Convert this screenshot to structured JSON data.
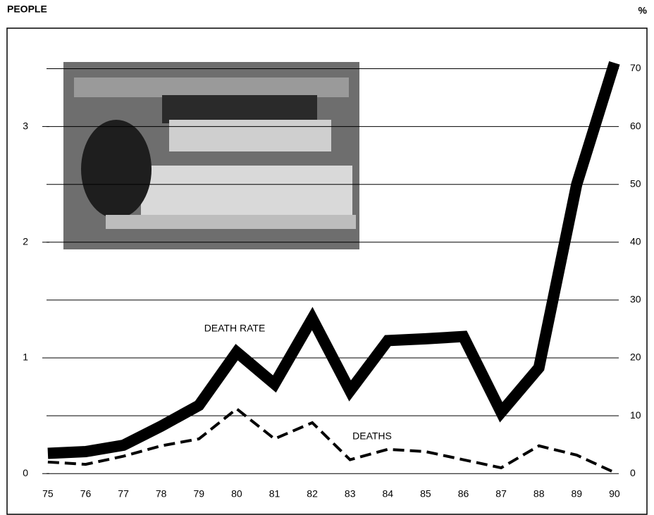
{
  "chart_data": {
    "type": "line",
    "y_label": "PEOPLE",
    "y2_label": "%",
    "x": [
      75,
      76,
      77,
      78,
      79,
      80,
      81,
      82,
      83,
      84,
      85,
      86,
      87,
      88,
      89,
      90
    ],
    "xlim": [
      73.92,
      90.86
    ],
    "ylim": [
      -0.23,
      3.85
    ],
    "yticks": [
      0,
      1,
      2,
      3
    ],
    "y2lim": [
      -4.6,
      77
    ],
    "y2ticks": [
      0,
      10,
      20,
      30,
      40,
      50,
      60,
      70
    ],
    "grid": true,
    "series": [
      {
        "name": "DEATH RATE",
        "color": "#000000",
        "axis": "y2",
        "linestyle": "solid",
        "values": [
          3.5,
          3.8,
          4.9,
          8.2,
          11.8,
          21,
          15.5,
          26.8,
          14.3,
          23,
          23.3,
          23.7,
          10.6,
          18.3,
          50,
          71
        ]
      },
      {
        "name": "DEATHS",
        "color": "#000000",
        "axis": "y",
        "linestyle": "dashed",
        "values": [
          0.1,
          0.08,
          0.15,
          0.24,
          0.3,
          0.56,
          0.3,
          0.44,
          0.12,
          0.21,
          0.19,
          0.12,
          0.05,
          0.24,
          0.16,
          0.01
        ]
      }
    ]
  }
}
